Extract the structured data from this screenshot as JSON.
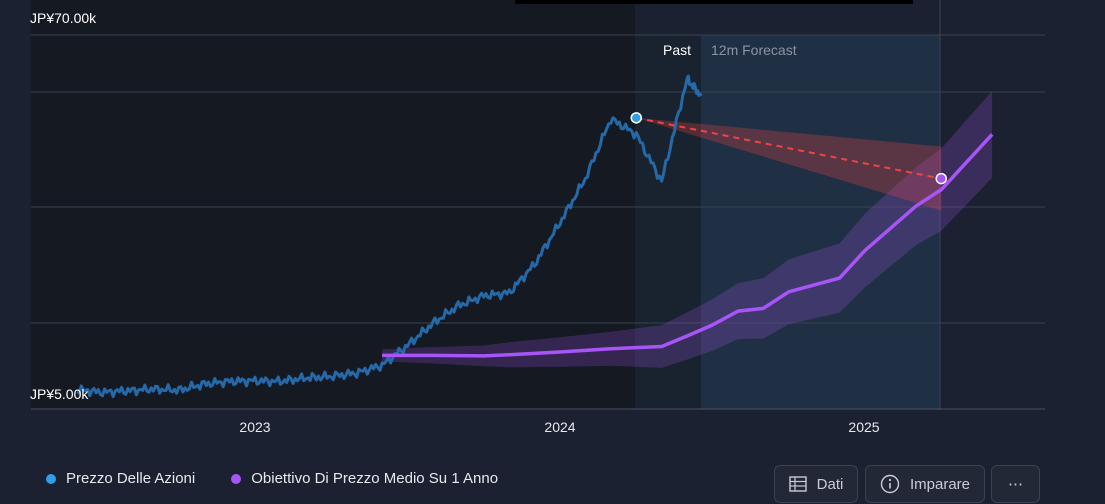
{
  "chart_data": {
    "type": "line",
    "y_tick_labels": {
      "top": "JP¥70.00k",
      "bottom": "JP¥5.00k"
    },
    "ylim": [
      5000,
      70000
    ],
    "x_tick_labels": [
      "2023",
      "2024",
      "2025"
    ],
    "period_labels": {
      "past": "Past",
      "forecast": "12m Forecast"
    },
    "series": [
      {
        "name": "Prezzo Delle Azioni",
        "color": "#2e9fe6",
        "points": [
          [
            "2022-06",
            5800
          ],
          [
            "2022-07",
            5300
          ],
          [
            "2022-08",
            5600
          ],
          [
            "2022-09",
            5900
          ],
          [
            "2022-10",
            5700
          ],
          [
            "2022-11",
            6800
          ],
          [
            "2022-12",
            7300
          ],
          [
            "2023-01",
            7400
          ],
          [
            "2023-02",
            7300
          ],
          [
            "2023-03",
            7900
          ],
          [
            "2023-04",
            8200
          ],
          [
            "2023-05",
            8800
          ],
          [
            "2023-06",
            10200
          ],
          [
            "2023-07",
            13800
          ],
          [
            "2023-08",
            17800
          ],
          [
            "2023-09",
            21000
          ],
          [
            "2023-10",
            22800
          ],
          [
            "2023-11",
            23300
          ],
          [
            "2023-12",
            28500
          ],
          [
            "2024-01",
            36000
          ],
          [
            "2024-02",
            44000
          ],
          [
            "2024-03",
            54800
          ],
          [
            "2024-04",
            52000
          ],
          [
            "2024-05",
            43500
          ],
          [
            "2024-06",
            62000
          ],
          [
            "2024-06-18",
            59000
          ]
        ]
      },
      {
        "name": "Obiettivo Di Prezzo Medio Su 1 Anno",
        "color": "#a855f7",
        "points": [
          [
            "2023-06",
            12000
          ],
          [
            "2023-08",
            12000
          ],
          [
            "2023-10",
            11900
          ],
          [
            "2023-11",
            12100
          ],
          [
            "2024-01",
            12600
          ],
          [
            "2024-03",
            13200
          ],
          [
            "2024-04",
            13400
          ],
          [
            "2024-05",
            13600
          ],
          [
            "2024-06",
            15500
          ],
          [
            "2024-07",
            17500
          ],
          [
            "2024-08",
            20000
          ],
          [
            "2024-09",
            20500
          ],
          [
            "2024-10",
            23500
          ],
          [
            "2024-12",
            26000
          ],
          [
            "2025-01",
            31000
          ],
          [
            "2025-03",
            39000
          ],
          [
            "2025-04",
            42000
          ],
          [
            "2025-06",
            52000
          ]
        ]
      },
      {
        "name": "forecast",
        "color": "#ef4444",
        "points": [
          [
            "2024-04",
            55000
          ],
          [
            "2025-04",
            44000
          ]
        ]
      }
    ],
    "grid": true,
    "legend": "bottom-left"
  },
  "legend": {
    "price_label": "Prezzo Delle Azioni",
    "target_label": "Obiettivo Di Prezzo Medio Su 1 Anno"
  },
  "buttons": {
    "data_label": "Dati",
    "learn_label": "Imparare",
    "more_label": "⋯"
  },
  "colors": {
    "background": "#1b2130",
    "price": "#2e9fe6",
    "target": "#a855f7",
    "forecast": "#ef4444"
  }
}
